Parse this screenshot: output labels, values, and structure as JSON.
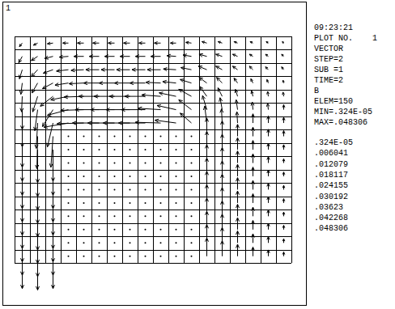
{
  "chart_data": {
    "type": "vector",
    "window_label": "1",
    "info": [
      "09:23:21",
      "PLOT NO.    1",
      "VECTOR",
      "STEP=2",
      "SUB =1",
      "TIME=2",
      "B",
      "ELEM=150",
      "MIN=.324E-05",
      "MAX=.048306"
    ],
    "legend_levels": [
      {
        "value": 3.24e-06,
        "label": ".324E-05"
      },
      {
        "value": 0.006041,
        "label": ".006041"
      },
      {
        "value": 0.012079,
        "label": ".012079"
      },
      {
        "value": 0.018117,
        "label": ".018117"
      },
      {
        "value": 0.024155,
        "label": ".024155"
      },
      {
        "value": 0.030192,
        "label": ".030192"
      },
      {
        "value": 0.03623,
        "label": ".03623"
      },
      {
        "value": 0.042268,
        "label": ".042268"
      },
      {
        "value": 0.048306,
        "label": ".048306"
      }
    ],
    "grid": true,
    "color": "#000000",
    "u": [
      [
        -0.004,
        -0.006,
        -0.008,
        -0.008,
        -0.009,
        -0.009,
        -0.009,
        -0.009,
        -0.009,
        -0.009,
        -0.008,
        -0.008,
        -0.007,
        -0.006,
        -0.005,
        -0.004,
        -0.003,
        -0.002
      ],
      [
        -0.005,
        -0.009,
        -0.012,
        -0.013,
        -0.014,
        -0.014,
        -0.014,
        -0.014,
        -0.014,
        -0.014,
        -0.013,
        -0.012,
        -0.011,
        -0.009,
        -0.007,
        -0.005,
        -0.004,
        -0.003
      ],
      [
        -0.004,
        -0.009,
        -0.014,
        -0.017,
        -0.018,
        -0.019,
        -0.019,
        -0.019,
        -0.019,
        -0.019,
        -0.018,
        -0.015,
        -0.012,
        -0.009,
        -0.007,
        -0.005,
        -0.004,
        -0.003
      ],
      [
        -0.002,
        -0.008,
        -0.015,
        -0.019,
        -0.021,
        -0.022,
        -0.022,
        -0.022,
        -0.022,
        -0.021,
        -0.019,
        -0.016,
        -0.011,
        -0.008,
        -0.005,
        -0.003,
        -0.002,
        -0.001
      ],
      [
        -0.001,
        -0.007,
        -0.018,
        -0.025,
        -0.028,
        -0.029,
        -0.029,
        -0.029,
        -0.029,
        -0.027,
        -0.024,
        -0.018,
        -0.01,
        -0.006,
        -0.003,
        -0.002,
        -0.001,
        -0.001
      ],
      [
        0,
        -0.004,
        -0.015,
        -0.03,
        -0.033,
        -0.034,
        -0.034,
        -0.034,
        -0.034,
        -0.032,
        -0.027,
        -0.018,
        -0.006,
        -0.003,
        -0.002,
        -0.001,
        -0.001,
        0
      ],
      [
        0,
        -0.002,
        -0.008,
        -0.035,
        -0.038,
        -0.038,
        -0.038,
        -0.038,
        -0.038,
        -0.036,
        -0.03,
        -0.016,
        -0.003,
        -0.001,
        -0.001,
        0,
        0,
        0
      ],
      [
        0,
        -0.001,
        -0.003,
        0,
        0,
        0,
        0,
        0,
        0,
        0,
        0,
        0,
        0,
        0,
        0,
        0,
        0,
        0
      ],
      [
        0,
        0,
        0,
        0,
        0,
        0,
        0,
        0,
        0,
        0,
        0,
        0,
        0,
        0,
        0,
        0,
        0,
        0
      ],
      [
        0,
        0,
        0,
        0,
        0,
        0,
        0,
        0,
        0,
        0,
        0,
        0,
        0,
        0,
        0,
        0,
        0,
        0
      ],
      [
        0,
        0,
        0,
        0,
        0,
        0,
        0,
        0,
        0,
        0,
        0,
        0,
        0,
        0,
        0,
        0,
        0,
        0
      ],
      [
        0,
        0,
        0,
        0,
        0,
        0,
        0,
        0,
        0,
        0,
        0,
        0,
        0,
        0,
        0,
        0,
        0,
        0
      ],
      [
        0,
        0,
        0,
        0,
        0,
        0,
        0,
        0,
        0,
        0,
        0,
        0,
        0,
        0,
        0,
        0,
        0,
        0
      ],
      [
        0,
        0,
        0,
        0,
        0,
        0,
        0,
        0,
        0,
        0,
        0,
        0,
        0,
        0,
        0,
        0,
        0,
        0
      ],
      [
        0,
        0,
        0,
        0,
        0,
        0,
        0,
        0,
        0,
        0,
        0,
        0,
        0,
        0,
        0,
        0,
        0,
        0
      ],
      [
        0,
        0,
        0,
        0,
        0,
        0,
        0,
        0,
        0,
        0,
        0,
        0,
        0,
        0,
        0,
        0,
        0,
        0
      ],
      [
        0,
        0,
        0,
        0,
        0,
        0,
        0,
        0,
        0,
        0,
        0,
        0,
        0,
        0,
        0,
        0,
        0,
        0
      ]
    ],
    "v": [
      [
        -0.005,
        -0.003,
        -0.001,
        0,
        0,
        0,
        0,
        0,
        0,
        0,
        0,
        0.001,
        0.002,
        0.002,
        0.002,
        0.002,
        0.002,
        0.002
      ],
      [
        -0.009,
        -0.006,
        -0.003,
        -0.001,
        0,
        0,
        0,
        0,
        0,
        0,
        0.001,
        0.002,
        0.003,
        0.003,
        0.003,
        0.003,
        0.003,
        0.003
      ],
      [
        -0.013,
        -0.01,
        -0.005,
        -0.002,
        -0.001,
        0,
        0,
        0,
        0,
        0,
        0.001,
        0.003,
        0.005,
        0.005,
        0.005,
        0.005,
        0.004,
        0.004
      ],
      [
        -0.016,
        -0.014,
        -0.008,
        -0.003,
        -0.001,
        0,
        0,
        0,
        0,
        0.001,
        0.002,
        0.005,
        0.008,
        0.008,
        0.007,
        0.006,
        0.005,
        0.004
      ],
      [
        -0.022,
        -0.022,
        -0.014,
        -0.005,
        -0.001,
        0,
        0,
        0,
        0,
        0.002,
        0.005,
        0.01,
        0.014,
        0.012,
        0.01,
        0.008,
        0.007,
        0.006
      ],
      [
        -0.028,
        -0.03,
        -0.024,
        -0.008,
        -0.001,
        0,
        0,
        0,
        0,
        0.002,
        0.006,
        0.014,
        0.02,
        0.017,
        0.014,
        0.011,
        0.009,
        0.007
      ],
      [
        -0.034,
        -0.036,
        -0.034,
        -0.006,
        -0.001,
        0,
        0,
        0,
        0,
        0.001,
        0.004,
        0.014,
        0.024,
        0.02,
        0.016,
        0.013,
        0.01,
        0.008
      ],
      [
        -0.044,
        -0.046,
        -0.044,
        5e-06,
        5e-06,
        4e-06,
        4e-06,
        4e-06,
        4e-06,
        4e-06,
        5e-06,
        6e-06,
        0.026,
        0.022,
        0.017,
        0.013,
        0.01,
        0.008
      ],
      [
        -0.045,
        -0.047,
        -0.045,
        5e-06,
        4e-06,
        4e-06,
        4e-06,
        4e-06,
        4e-06,
        4e-06,
        4e-06,
        5e-06,
        0.026,
        0.022,
        0.017,
        0.013,
        0.009,
        0.007
      ],
      [
        -0.046,
        -0.048,
        -0.046,
        4e-06,
        4e-06,
        4e-06,
        4e-06,
        4e-06,
        4e-06,
        4e-06,
        4e-06,
        4e-06,
        0.026,
        0.022,
        0.017,
        0.013,
        0.009,
        0.006
      ],
      [
        -0.046,
        -0.048,
        -0.046,
        4e-06,
        4e-06,
        4e-06,
        4e-06,
        4e-06,
        4e-06,
        4e-06,
        4e-06,
        4e-06,
        0.026,
        0.022,
        0.017,
        0.013,
        0.009,
        0.006
      ],
      [
        -0.046,
        -0.048,
        -0.046,
        4e-06,
        4e-06,
        4e-06,
        3.24e-06,
        4e-06,
        4e-06,
        4e-06,
        4e-06,
        4e-06,
        0.026,
        0.022,
        0.017,
        0.013,
        0.009,
        0.006
      ],
      [
        -0.046,
        -0.048306,
        -0.046,
        4e-06,
        4e-06,
        4e-06,
        4e-06,
        4e-06,
        4e-06,
        4e-06,
        4e-06,
        4e-06,
        0.026,
        0.022,
        0.017,
        0.013,
        0.009,
        0.006
      ],
      [
        -0.046,
        -0.048,
        -0.046,
        4e-06,
        4e-06,
        4e-06,
        4e-06,
        4e-06,
        4e-06,
        4e-06,
        4e-06,
        4e-06,
        0.026,
        0.022,
        0.017,
        0.013,
        0.009,
        0.006
      ],
      [
        -0.046,
        -0.048,
        -0.046,
        4e-06,
        4e-06,
        4e-06,
        4e-06,
        4e-06,
        4e-06,
        4e-06,
        4e-06,
        4e-06,
        0.026,
        0.022,
        0.017,
        0.013,
        0.009,
        0.006
      ],
      [
        -0.046,
        -0.048,
        -0.046,
        4e-06,
        4e-06,
        4e-06,
        4e-06,
        4e-06,
        4e-06,
        4e-06,
        4e-06,
        4e-06,
        0.026,
        0.022,
        0.017,
        0.013,
        0.009,
        0.006
      ],
      [
        -0.046,
        -0.048,
        -0.046,
        4e-06,
        4e-06,
        4e-06,
        4e-06,
        4e-06,
        4e-06,
        4e-06,
        4e-06,
        4e-06,
        0.026,
        0.022,
        0.017,
        0.013,
        0.009,
        0.006
      ]
    ]
  }
}
